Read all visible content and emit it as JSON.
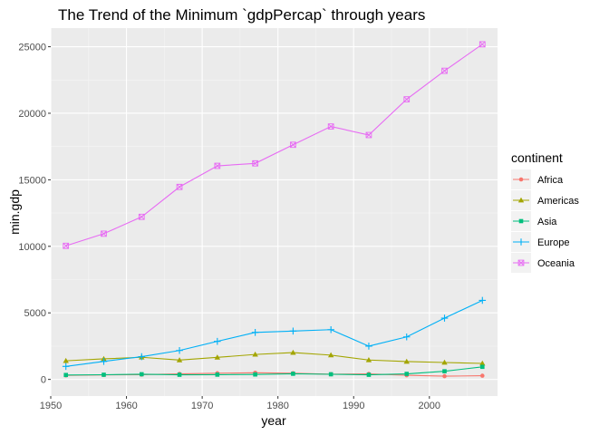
{
  "chart_data": {
    "type": "line",
    "title": "The Trend of the Minimum `gdpPercap` through years",
    "xlabel": "year",
    "ylabel": "min.gdp",
    "xlim": [
      1950,
      2009
    ],
    "ylim": [
      -1250,
      26400
    ],
    "xticks": [
      1950,
      1960,
      1970,
      1980,
      1990,
      2000
    ],
    "yticks": [
      0,
      5000,
      10000,
      15000,
      20000,
      25000
    ],
    "grid": true,
    "legend": {
      "title": "continent",
      "placement": "right"
    },
    "x": [
      1952,
      1957,
      1962,
      1967,
      1972,
      1977,
      1982,
      1987,
      1992,
      1997,
      2002,
      2007
    ],
    "series": [
      {
        "name": "Africa",
        "color": "#F8766D",
        "shape": "circle",
        "values": [
          298.8,
          336.0,
          355.2,
          412.0,
          464.1,
          502.3,
          462.2,
          389.9,
          410.9,
          312.2,
          241.2,
          277.6
        ]
      },
      {
        "name": "Americas",
        "color": "#A3A500",
        "shape": "triangle",
        "values": [
          1397.7,
          1544.4,
          1662.1,
          1452.1,
          1654.5,
          1874.3,
          2011.2,
          1823.0,
          1456.3,
          1341.7,
          1270.4,
          1201.6
        ]
      },
      {
        "name": "Asia",
        "color": "#00BF7D",
        "shape": "square",
        "values": [
          331.0,
          350.0,
          388.0,
          349.0,
          357.0,
          371.0,
          424.0,
          385.0,
          347.0,
          415.0,
          611.0,
          944.0
        ]
      },
      {
        "name": "Europe",
        "color": "#00B0F6",
        "shape": "plus",
        "values": [
          973.5,
          1353.0,
          1709.7,
          2172.4,
          2860.2,
          3528.5,
          3630.9,
          3738.9,
          2497.4,
          3193.1,
          4604.2,
          5937.0
        ]
      },
      {
        "name": "Oceania",
        "color": "#E76BF3",
        "shape": "boxed-x",
        "values": [
          10039.6,
          10949.6,
          12217.2,
          14463.9,
          16046.0,
          16233.7,
          17632.4,
          19007.2,
          18363.3,
          21050.4,
          23189.8,
          25185.0
        ]
      }
    ]
  }
}
